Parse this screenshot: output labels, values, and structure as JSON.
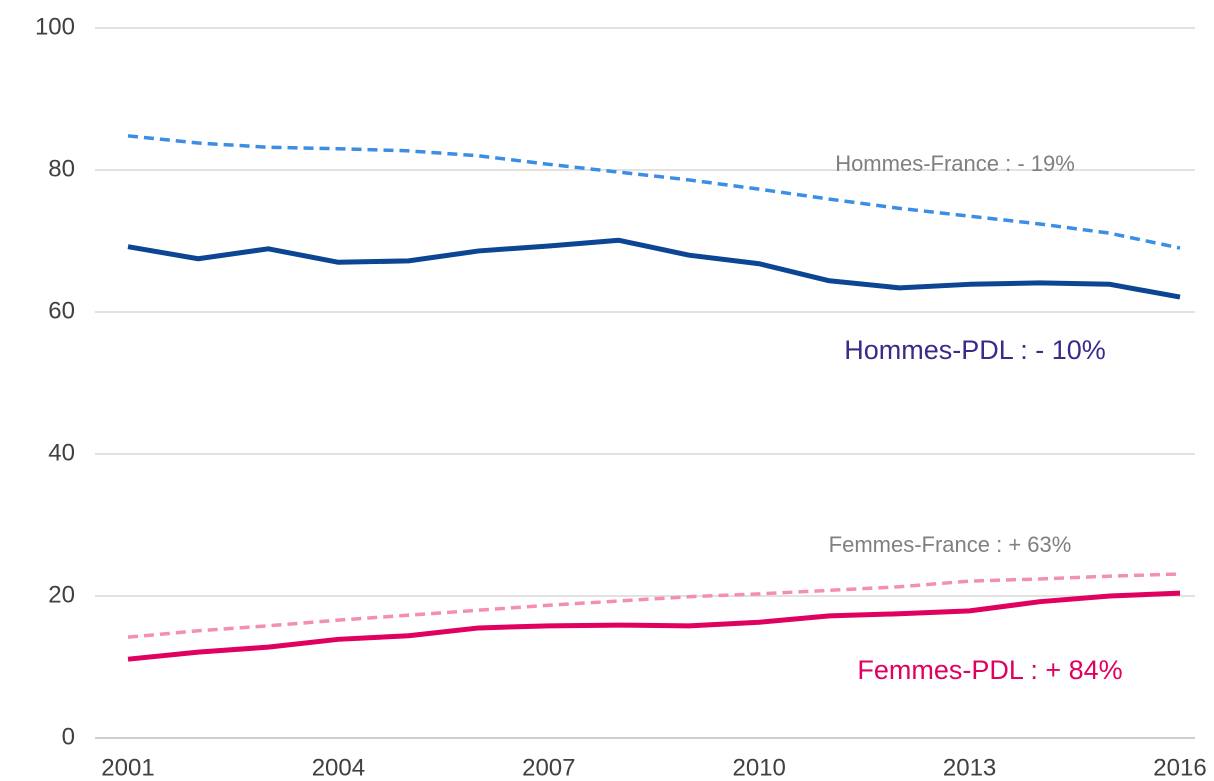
{
  "chart_data": {
    "type": "line",
    "x": [
      2001,
      2002,
      2003,
      2004,
      2005,
      2006,
      2007,
      2008,
      2009,
      2010,
      2011,
      2012,
      2013,
      2014,
      2015,
      2016
    ],
    "xlim": [
      2001,
      2016
    ],
    "xticks": [
      2001,
      2004,
      2007,
      2010,
      2013,
      2016
    ],
    "ylim": [
      0,
      100
    ],
    "yticks": [
      0,
      20,
      40,
      60,
      80,
      100
    ],
    "grid": true,
    "series": [
      {
        "color": "#3a8ee6",
        "dashed": true,
        "values": [
          84.8,
          83.8,
          83.2,
          83.0,
          82.7,
          82.0,
          80.8,
          79.7,
          78.6,
          77.3,
          75.9,
          74.6,
          73.5,
          72.4,
          71.1,
          69.0
        ]
      },
      {
        "color": "#0b4594",
        "dashed": false,
        "values": [
          69.2,
          67.5,
          68.9,
          67.0,
          67.2,
          68.6,
          69.3,
          70.1,
          68.0,
          66.8,
          64.4,
          63.4,
          63.9,
          64.1,
          63.9,
          62.1
        ]
      },
      {
        "color": "#f48fb1",
        "dashed": true,
        "values": [
          14.2,
          15.1,
          15.8,
          16.6,
          17.3,
          18.0,
          18.7,
          19.3,
          19.9,
          20.3,
          20.8,
          21.3,
          22.1,
          22.4,
          22.8,
          23.1
        ]
      },
      {
        "color": "#e0005f",
        "dashed": false,
        "values": [
          11.1,
          12.1,
          12.8,
          13.9,
          14.4,
          15.5,
          15.8,
          15.9,
          15.8,
          16.3,
          17.2,
          17.5,
          17.9,
          19.2,
          20.0,
          20.4
        ]
      }
    ],
    "annotations": [
      {
        "text": "Hommes-France : - 19%",
        "color": "#808080"
      },
      {
        "text": "Hommes-PDL : - 10%",
        "color": "#3b2a8a"
      },
      {
        "text": "Femmes-France : + 63%",
        "color": "#808080"
      },
      {
        "text": "Femmes-PDL : + 84%",
        "color": "#e0005f"
      }
    ]
  }
}
